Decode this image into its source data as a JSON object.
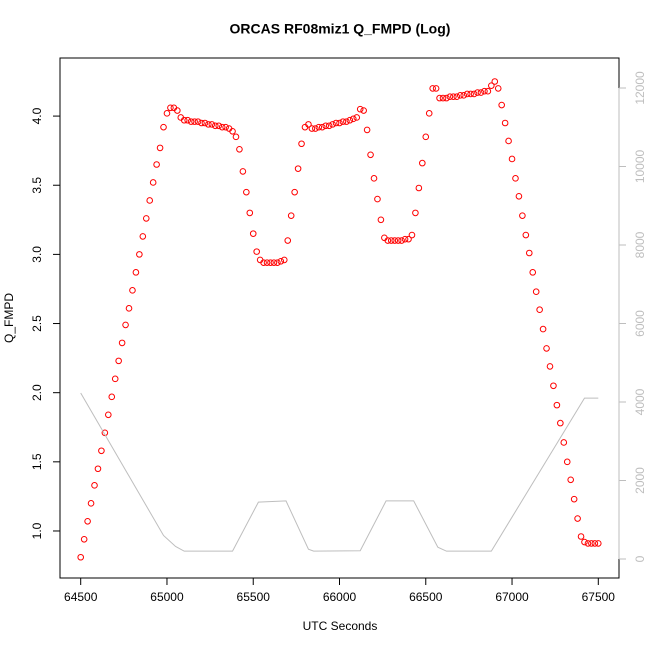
{
  "chart_data": {
    "type": "scatter",
    "title": "ORCAS RF08miz1 Q_FMPD (Log)",
    "xlabel": "UTC Seconds",
    "ylabel": "Q_FMPD",
    "xlim": [
      64380,
      67620
    ],
    "ylim": [
      0.66,
      4.42
    ],
    "y2lim": [
      -484,
      12764
    ],
    "xticks": [
      64500,
      65000,
      65500,
      66000,
      66500,
      67000,
      67500
    ],
    "yticks": [
      {
        "value": 1,
        "label": "1.0"
      },
      {
        "value": 1.5,
        "label": "1.5"
      },
      {
        "value": 2,
        "label": "2.0"
      },
      {
        "value": 2.5,
        "label": "2.5"
      },
      {
        "value": 3,
        "label": "3.0"
      },
      {
        "value": 3.5,
        "label": "3.5"
      },
      {
        "value": 4,
        "label": "4.0"
      }
    ],
    "y2ticks": [
      0,
      2000,
      4000,
      6000,
      8000,
      10000,
      12000
    ],
    "series": [
      {
        "type": "scatter",
        "color": "#ff0000",
        "x": [
          64500,
          64520,
          64540,
          64560,
          64580,
          64600,
          64620,
          64640,
          64660,
          64680,
          64700,
          64720,
          64740,
          64760,
          64780,
          64800,
          64820,
          64840,
          64860,
          64880,
          64900,
          64920,
          64940,
          64960,
          64980,
          65000,
          65020,
          65040,
          65060,
          65080,
          65100,
          65120,
          65140,
          65160,
          65180,
          65200,
          65220,
          65240,
          65260,
          65280,
          65300,
          65320,
          65340,
          65360,
          65380,
          65400,
          65420,
          65440,
          65460,
          65480,
          65500,
          65520,
          65540,
          65560,
          65580,
          65600,
          65620,
          65640,
          65660,
          65680,
          65700,
          65720,
          65740,
          65760,
          65780,
          65800,
          65820,
          65840,
          65860,
          65880,
          65900,
          65920,
          65940,
          65960,
          65980,
          66000,
          66020,
          66040,
          66060,
          66080,
          66100,
          66120,
          66140,
          66160,
          66180,
          66200,
          66220,
          66240,
          66260,
          66280,
          66300,
          66320,
          66340,
          66360,
          66380,
          66400,
          66420,
          66440,
          66460,
          66480,
          66500,
          66520,
          66540,
          66560,
          66580,
          66600,
          66620,
          66640,
          66660,
          66680,
          66700,
          66720,
          66740,
          66760,
          66780,
          66800,
          66820,
          66840,
          66860,
          66880,
          66900,
          66920,
          66940,
          66960,
          66980,
          67000,
          67020,
          67040,
          67060,
          67080,
          67100,
          67120,
          67140,
          67160,
          67180,
          67200,
          67220,
          67240,
          67260,
          67280,
          67300,
          67320,
          67340,
          67360,
          67380,
          67400,
          67420,
          67440,
          67460,
          67480,
          67500
        ],
        "values": [
          0.81,
          0.94,
          1.07,
          1.2,
          1.33,
          1.45,
          1.58,
          1.71,
          1.84,
          1.97,
          2.1,
          2.23,
          2.36,
          2.49,
          2.61,
          2.74,
          2.87,
          3.0,
          3.13,
          3.26,
          3.39,
          3.52,
          3.65,
          3.77,
          3.92,
          4.02,
          4.06,
          4.06,
          4.04,
          3.99,
          3.97,
          3.97,
          3.96,
          3.96,
          3.96,
          3.95,
          3.95,
          3.94,
          3.94,
          3.93,
          3.93,
          3.92,
          3.92,
          3.91,
          3.89,
          3.85,
          3.76,
          3.6,
          3.45,
          3.3,
          3.15,
          3.02,
          2.96,
          2.94,
          2.94,
          2.94,
          2.94,
          2.94,
          2.95,
          2.96,
          3.1,
          3.28,
          3.45,
          3.62,
          3.8,
          3.92,
          3.94,
          3.91,
          3.91,
          3.92,
          3.92,
          3.93,
          3.93,
          3.94,
          3.95,
          3.95,
          3.96,
          3.96,
          3.97,
          3.98,
          3.99,
          4.05,
          4.04,
          3.9,
          3.72,
          3.55,
          3.4,
          3.25,
          3.12,
          3.1,
          3.1,
          3.1,
          3.1,
          3.1,
          3.11,
          3.11,
          3.14,
          3.3,
          3.48,
          3.66,
          3.85,
          4.02,
          4.2,
          4.2,
          4.13,
          4.13,
          4.13,
          4.14,
          4.14,
          4.14,
          4.15,
          4.15,
          4.16,
          4.16,
          4.16,
          4.17,
          4.17,
          4.18,
          4.18,
          4.22,
          4.25,
          4.2,
          4.08,
          3.95,
          3.82,
          3.69,
          3.55,
          3.42,
          3.28,
          3.14,
          3.01,
          2.87,
          2.73,
          2.6,
          2.46,
          2.32,
          2.19,
          2.05,
          1.91,
          1.78,
          1.64,
          1.5,
          1.37,
          1.23,
          1.09,
          0.96,
          0.92,
          0.91,
          0.91,
          0.91,
          0.91
        ]
      },
      {
        "type": "line",
        "axis": "y2",
        "color": "#bebebe",
        "x": [
          64500,
          64980,
          65050,
          65100,
          65380,
          65530,
          65690,
          65820,
          65850,
          66120,
          66270,
          66430,
          66570,
          66620,
          66880,
          67420,
          67500
        ],
        "values": [
          4230,
          600,
          320,
          200,
          200,
          1450,
          1480,
          250,
          200,
          210,
          1480,
          1480,
          300,
          200,
          200,
          4100,
          4100
        ]
      }
    ]
  }
}
